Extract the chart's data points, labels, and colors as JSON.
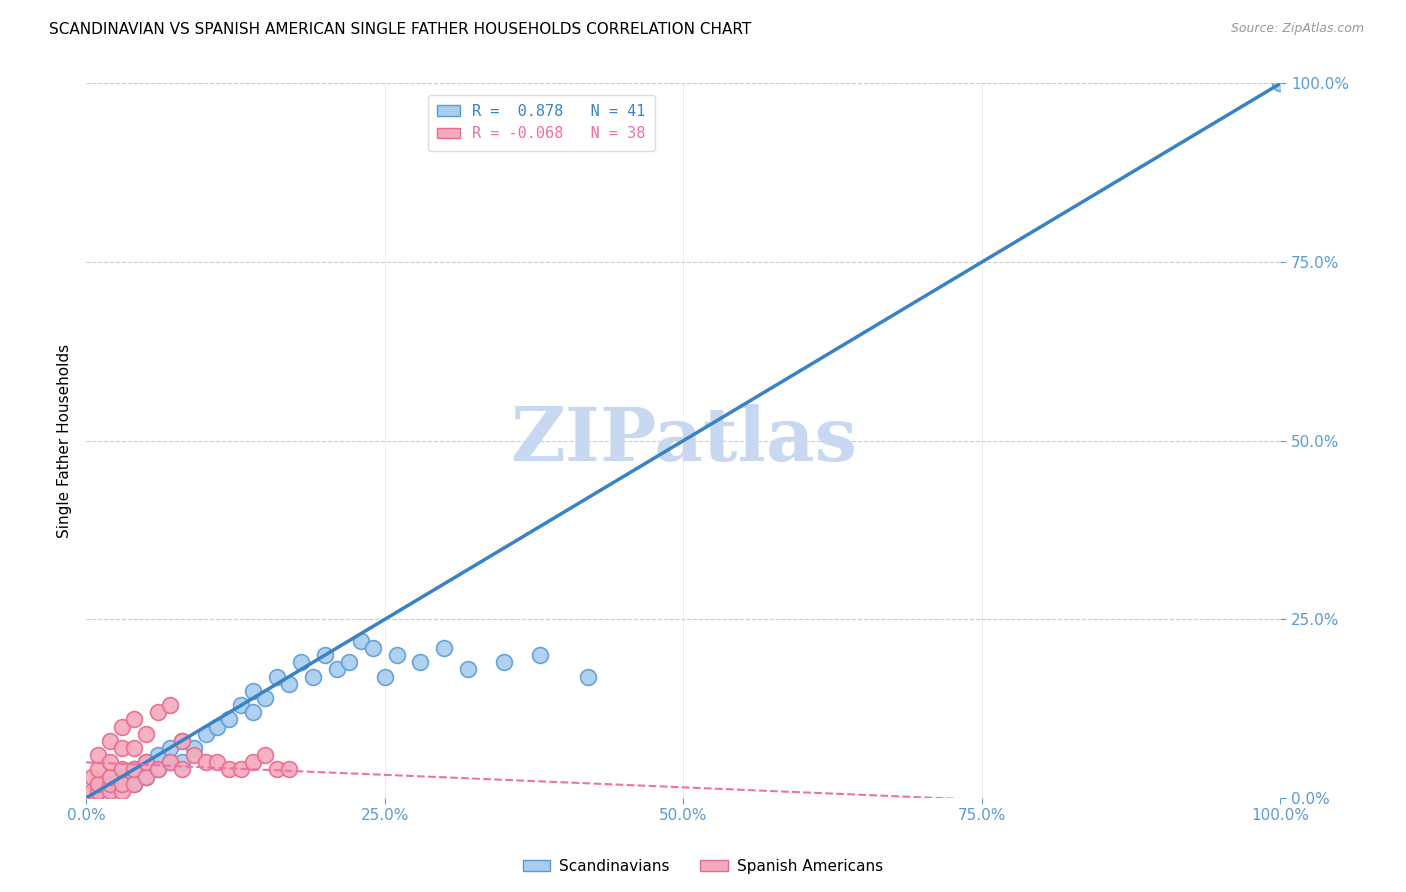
{
  "title": "SCANDINAVIAN VS SPANISH AMERICAN SINGLE FATHER HOUSEHOLDS CORRELATION CHART",
  "source": "Source: ZipAtlas.com",
  "ylabel": "Single Father Households",
  "xlim": [
    0,
    100
  ],
  "ylim": [
    0,
    100
  ],
  "xticks": [
    0,
    25,
    50,
    75,
    100
  ],
  "yticks": [
    0,
    25,
    50,
    75,
    100
  ],
  "xticklabels": [
    "0.0%",
    "25.0%",
    "50.0%",
    "75.0%",
    "100.0%"
  ],
  "yticklabels": [
    "0.0%",
    "25.0%",
    "50.0%",
    "75.0%",
    "100.0%"
  ],
  "blue_scatter_x": [
    1,
    2,
    2,
    3,
    3,
    4,
    4,
    5,
    5,
    6,
    6,
    7,
    7,
    8,
    8,
    9,
    10,
    11,
    12,
    13,
    14,
    14,
    15,
    16,
    17,
    18,
    19,
    20,
    21,
    22,
    23,
    24,
    25,
    26,
    28,
    30,
    32,
    35,
    38,
    42,
    100
  ],
  "blue_scatter_y": [
    1,
    1,
    2,
    2,
    3,
    2,
    4,
    3,
    5,
    4,
    6,
    5,
    7,
    5,
    8,
    7,
    9,
    10,
    11,
    13,
    12,
    15,
    14,
    17,
    16,
    19,
    17,
    20,
    18,
    19,
    22,
    21,
    17,
    20,
    19,
    21,
    18,
    19,
    20,
    17,
    100
  ],
  "pink_scatter_x": [
    0.5,
    0.5,
    1,
    1,
    1,
    1,
    2,
    2,
    2,
    2,
    2,
    3,
    3,
    3,
    3,
    3,
    4,
    4,
    4,
    4,
    5,
    5,
    5,
    6,
    6,
    7,
    7,
    8,
    8,
    9,
    10,
    11,
    12,
    13,
    14,
    15,
    16,
    17
  ],
  "pink_scatter_y": [
    1,
    3,
    1,
    2,
    4,
    6,
    1,
    2,
    3,
    5,
    8,
    1,
    2,
    4,
    7,
    10,
    2,
    4,
    7,
    11,
    3,
    5,
    9,
    4,
    12,
    5,
    13,
    4,
    8,
    6,
    5,
    5,
    4,
    4,
    5,
    6,
    4,
    4
  ],
  "blue_line_x0": 0,
  "blue_line_y0": 0,
  "blue_line_x1": 100,
  "blue_line_y1": 100,
  "pink_line_x0": 0,
  "pink_line_y0": 5,
  "pink_line_x1": 100,
  "pink_line_y1": -2,
  "blue_line_color": "#3B82C4",
  "pink_line_color": "#F06FA4",
  "blue_scatter_facecolor": "#A8CDEF",
  "blue_scatter_edgecolor": "#5B9BD5",
  "pink_scatter_facecolor": "#F4AABE",
  "pink_scatter_edgecolor": "#E8698A",
  "blue_R": "0.878",
  "blue_N": "41",
  "pink_R": "-0.068",
  "pink_N": "38",
  "watermark": "ZIPatlas",
  "watermark_color": "#C8D8F0",
  "legend_label_blue": "Scandinavians",
  "legend_label_pink": "Spanish Americans",
  "title_fontsize": 11,
  "axis_tick_color": "#5B9BD5",
  "grid_color": "#CCCCCC",
  "figsize": [
    14.06,
    8.92
  ],
  "dpi": 100
}
